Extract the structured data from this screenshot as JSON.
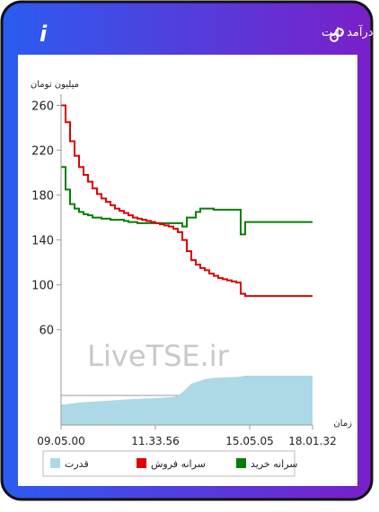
{
  "header": {
    "title": "سرانه ی خرید و فروش حقیقی در صندوق های درآمد ثابت"
  },
  "chart_data": {
    "type": "line",
    "y_label": "میلیون تومان",
    "x_label": "زمان",
    "watermark": "LiveTSE.ir",
    "categories": [
      "09.05.00",
      null,
      null,
      null,
      null,
      null,
      null,
      null,
      null,
      null,
      null,
      null,
      null,
      null,
      null,
      null,
      null,
      null,
      null,
      null,
      null,
      "11.33.56",
      null,
      null,
      null,
      null,
      null,
      null,
      null,
      null,
      null,
      null,
      null,
      null,
      null,
      null,
      null,
      null,
      null,
      null,
      null,
      null,
      "15.05.05",
      null,
      null,
      null,
      null,
      null,
      null,
      null,
      null,
      null,
      null,
      null,
      null,
      null,
      "18.01.32"
    ],
    "ylim": [
      -25,
      270
    ],
    "yticks": [
      60,
      100,
      140,
      180,
      220,
      260
    ],
    "y2lim": [
      0,
      11.2
    ],
    "series": [
      {
        "name": "سرانه خرید",
        "color": "#008000",
        "values": [
          205,
          185,
          172,
          168,
          165,
          163,
          162,
          160,
          160,
          159,
          159,
          158,
          158,
          158,
          157,
          156,
          156,
          155,
          155,
          155,
          155,
          155,
          155,
          155,
          155,
          155,
          155,
          152,
          160,
          160,
          165,
          168,
          168,
          168,
          167,
          167,
          167,
          167,
          167,
          167,
          145,
          156,
          156,
          156,
          156,
          156,
          156,
          156,
          156,
          156,
          156,
          156,
          156,
          156,
          156,
          156,
          156
        ]
      },
      {
        "name": "سرانه فروش",
        "color": "#e00000",
        "values": [
          260,
          245,
          228,
          215,
          205,
          198,
          192,
          186,
          181,
          177,
          174,
          171,
          168,
          166,
          164,
          162,
          160,
          159,
          158,
          157,
          156,
          155,
          154,
          153,
          152,
          150,
          147,
          140,
          130,
          122,
          118,
          115,
          113,
          110,
          108,
          106,
          105,
          104,
          103,
          102,
          92,
          90,
          90,
          90,
          90,
          90,
          90,
          90,
          90,
          90,
          90,
          90,
          90,
          90,
          90,
          90,
          90
        ]
      },
      {
        "name": "قدرت",
        "color": "#add8e6",
        "axis": "y2",
        "area": true,
        "values": [
          0.7,
          0.7,
          0.72,
          0.74,
          0.76,
          0.77,
          0.78,
          0.79,
          0.8,
          0.81,
          0.82,
          0.83,
          0.84,
          0.85,
          0.86,
          0.87,
          0.88,
          0.88,
          0.89,
          0.9,
          0.9,
          0.91,
          0.92,
          0.93,
          0.94,
          0.95,
          1.0,
          1.1,
          1.25,
          1.4,
          1.45,
          1.5,
          1.55,
          1.58,
          1.6,
          1.6,
          1.61,
          1.62,
          1.62,
          1.63,
          1.64,
          1.67,
          1.67,
          1.67,
          1.67,
          1.67,
          1.67,
          1.67,
          1.67,
          1.67,
          1.67,
          1.67,
          1.67,
          1.67,
          1.67,
          1.67,
          1.67
        ]
      }
    ]
  }
}
